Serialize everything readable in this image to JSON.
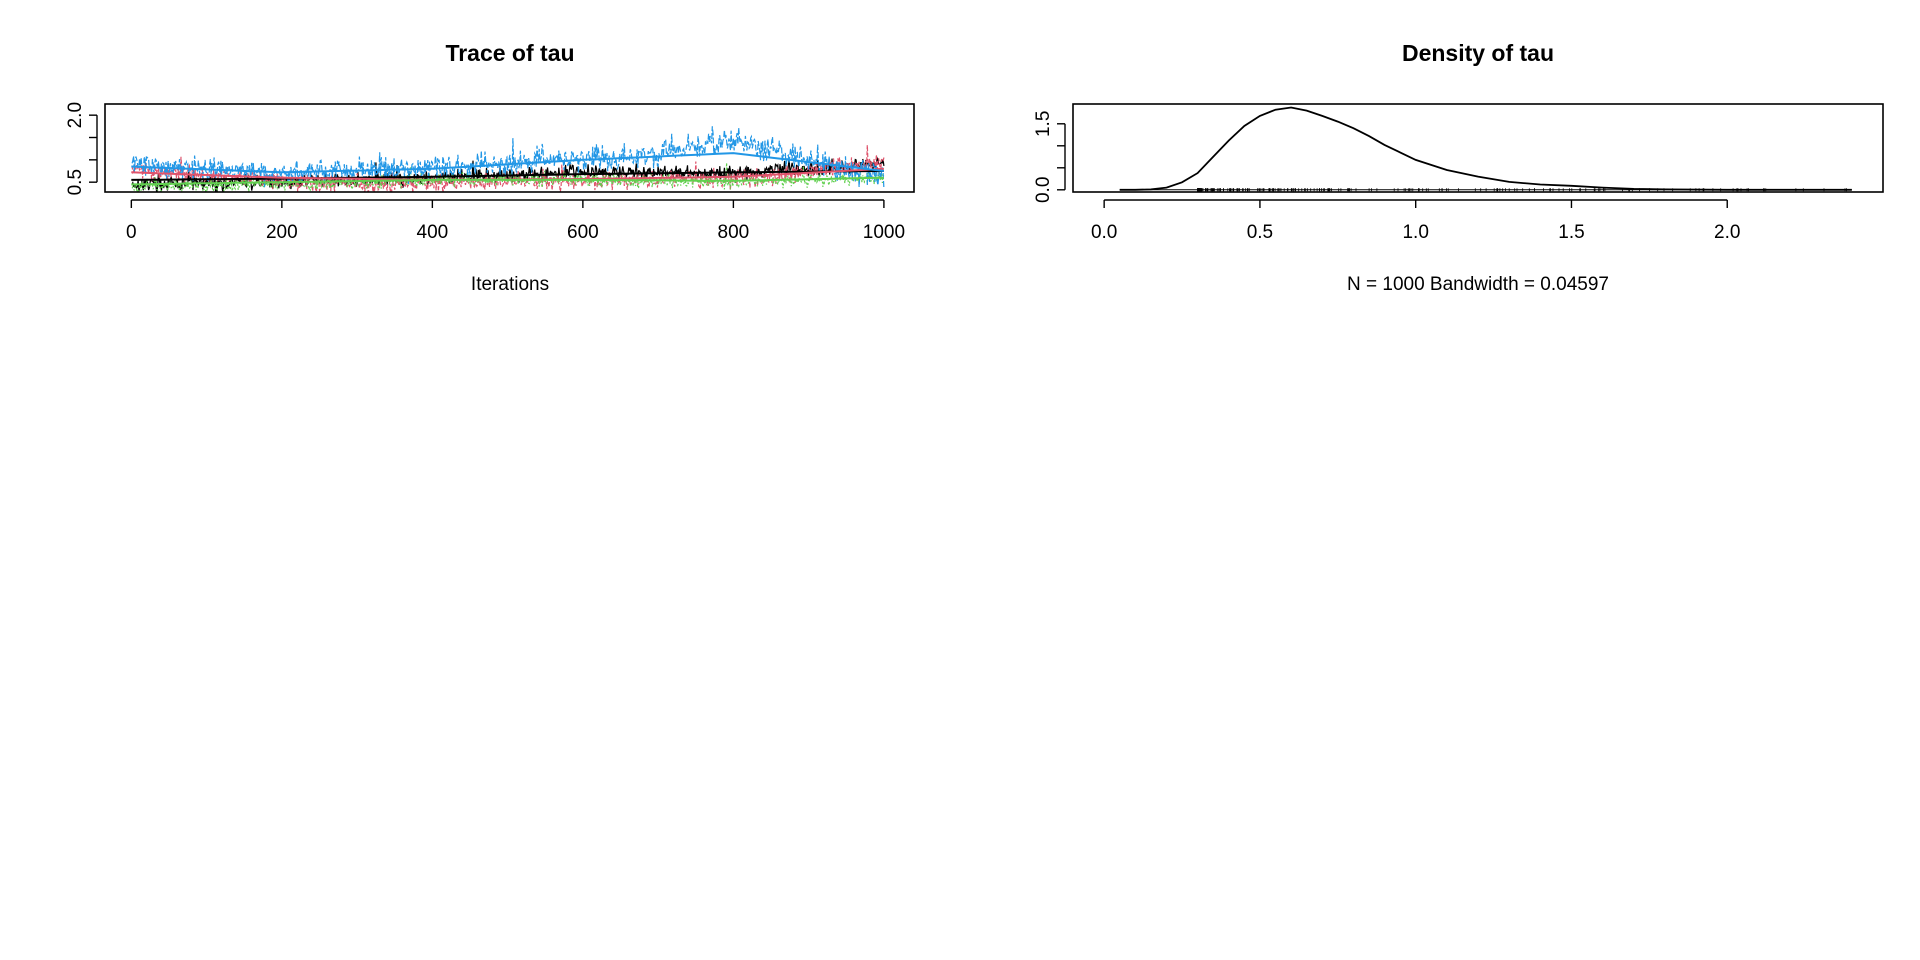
{
  "chart_data": [
    {
      "type": "line",
      "title": "Trace of tau",
      "xlabel": "Iterations",
      "ylabel": "",
      "xlim": [
        -35,
        1040
      ],
      "ylim": [
        0.28,
        2.25
      ],
      "xticks": [
        0,
        200,
        400,
        600,
        800,
        1000
      ],
      "xtick_labels": [
        "0",
        "200",
        "400",
        "600",
        "800",
        "1000"
      ],
      "yticks": [
        0.5,
        1.0,
        1.5,
        2.0
      ],
      "ytick_labels": [
        "0.5",
        "",
        "",
        "2.0"
      ],
      "n_iterations": 1000,
      "series": [
        {
          "color": "#000000",
          "dash": "solid",
          "trend": [
            [
              0,
              0.45
            ],
            [
              200,
              0.5
            ],
            [
              400,
              0.6
            ],
            [
              500,
              0.65
            ],
            [
              600,
              0.75
            ],
            [
              700,
              0.7
            ],
            [
              800,
              0.7
            ],
            [
              900,
              0.8
            ],
            [
              1000,
              0.9
            ]
          ],
          "noise": 0.1
        },
        {
          "color": "#DF536B",
          "dash": "4,2",
          "trend": [
            [
              0,
              0.8
            ],
            [
              100,
              0.65
            ],
            [
              300,
              0.45
            ],
            [
              500,
              0.5
            ],
            [
              700,
              0.55
            ],
            [
              850,
              0.6
            ],
            [
              950,
              0.9
            ],
            [
              1000,
              0.9
            ]
          ],
          "noise": 0.12
        },
        {
          "color": "#61D04F",
          "dash": "2,2",
          "trend": [
            [
              0,
              0.4
            ],
            [
              200,
              0.45
            ],
            [
              400,
              0.55
            ],
            [
              600,
              0.55
            ],
            [
              800,
              0.5
            ],
            [
              1000,
              0.6
            ]
          ],
          "noise": 0.09
        },
        {
          "color": "#2297E6",
          "dash": "6,2",
          "trend": [
            [
              0,
              0.9
            ],
            [
              200,
              0.7
            ],
            [
              400,
              0.8
            ],
            [
              550,
              1.0
            ],
            [
              700,
              1.1
            ],
            [
              800,
              1.5
            ],
            [
              850,
              1.2
            ],
            [
              950,
              0.75
            ],
            [
              1000,
              0.7
            ]
          ],
          "noise": 0.16
        }
      ],
      "smooth_lines": [
        {
          "color": "#000000",
          "points": [
            [
              0,
              0.55
            ],
            [
              200,
              0.58
            ],
            [
              400,
              0.62
            ],
            [
              600,
              0.68
            ],
            [
              800,
              0.72
            ],
            [
              1000,
              0.75
            ]
          ]
        },
        {
          "color": "#DF536B",
          "points": [
            [
              0,
              0.72
            ],
            [
              200,
              0.6
            ],
            [
              400,
              0.55
            ],
            [
              600,
              0.57
            ],
            [
              800,
              0.62
            ],
            [
              1000,
              0.8
            ]
          ]
        },
        {
          "color": "#61D04F",
          "points": [
            [
              0,
              0.45
            ],
            [
              200,
              0.5
            ],
            [
              400,
              0.55
            ],
            [
              600,
              0.55
            ],
            [
              800,
              0.53
            ],
            [
              1000,
              0.6
            ]
          ]
        },
        {
          "color": "#2297E6",
          "points": [
            [
              0,
              0.85
            ],
            [
              200,
              0.72
            ],
            [
              400,
              0.8
            ],
            [
              600,
              1.0
            ],
            [
              800,
              1.15
            ],
            [
              1000,
              0.75
            ]
          ]
        }
      ]
    },
    {
      "type": "line",
      "title": "Density of tau",
      "xlabel": "N = 1000   Bandwidth = 0.04597",
      "ylabel": "",
      "xlim": [
        -0.1,
        2.5
      ],
      "ylim": [
        -0.05,
        1.95
      ],
      "xticks": [
        0.0,
        0.5,
        1.0,
        1.5,
        2.0
      ],
      "xtick_labels": [
        "0.0",
        "0.5",
        "1.0",
        "1.5",
        "2.0"
      ],
      "yticks": [
        0.0,
        0.5,
        1.0,
        1.5
      ],
      "ytick_labels": [
        "0.0",
        "",
        "",
        "1.5"
      ],
      "x": [
        0.05,
        0.1,
        0.15,
        0.2,
        0.25,
        0.3,
        0.35,
        0.4,
        0.45,
        0.5,
        0.55,
        0.6,
        0.65,
        0.7,
        0.75,
        0.8,
        0.85,
        0.9,
        0.95,
        1.0,
        1.1,
        1.2,
        1.3,
        1.4,
        1.5,
        1.6,
        1.7,
        1.8,
        2.0,
        2.2,
        2.4
      ],
      "y": [
        0.0,
        0.0,
        0.01,
        0.05,
        0.17,
        0.38,
        0.75,
        1.12,
        1.45,
        1.68,
        1.82,
        1.87,
        1.8,
        1.68,
        1.55,
        1.4,
        1.22,
        1.02,
        0.85,
        0.68,
        0.45,
        0.3,
        0.18,
        0.12,
        0.09,
        0.05,
        0.02,
        0.01,
        0.0,
        0.0,
        0.0
      ],
      "rug": {
        "from": 0.3,
        "to": 2.4
      }
    }
  ]
}
